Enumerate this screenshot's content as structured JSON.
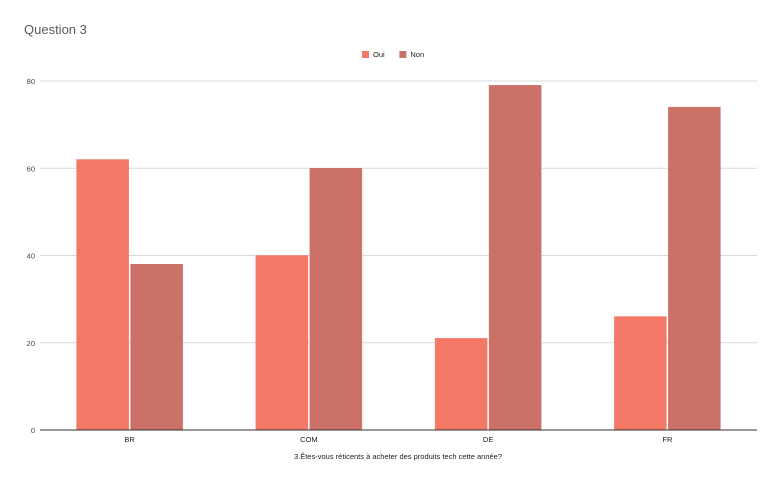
{
  "chart_data": {
    "type": "bar",
    "title": "Question 3",
    "xlabel": "3.Êtes-vous réticents à acheter des produits tech cette année?",
    "ylabel": "",
    "ylim": [
      0,
      80
    ],
    "yticks": [
      0,
      20,
      40,
      60,
      80
    ],
    "grid": true,
    "legend_position": "top",
    "categories": [
      "BR",
      "COM",
      "DE",
      "FR"
    ],
    "series": [
      {
        "name": "Oui",
        "color": "#f47866",
        "values": [
          62,
          40,
          21,
          26
        ]
      },
      {
        "name": "Non",
        "color": "#cc7168",
        "values": [
          38,
          60,
          79,
          74
        ]
      }
    ]
  }
}
